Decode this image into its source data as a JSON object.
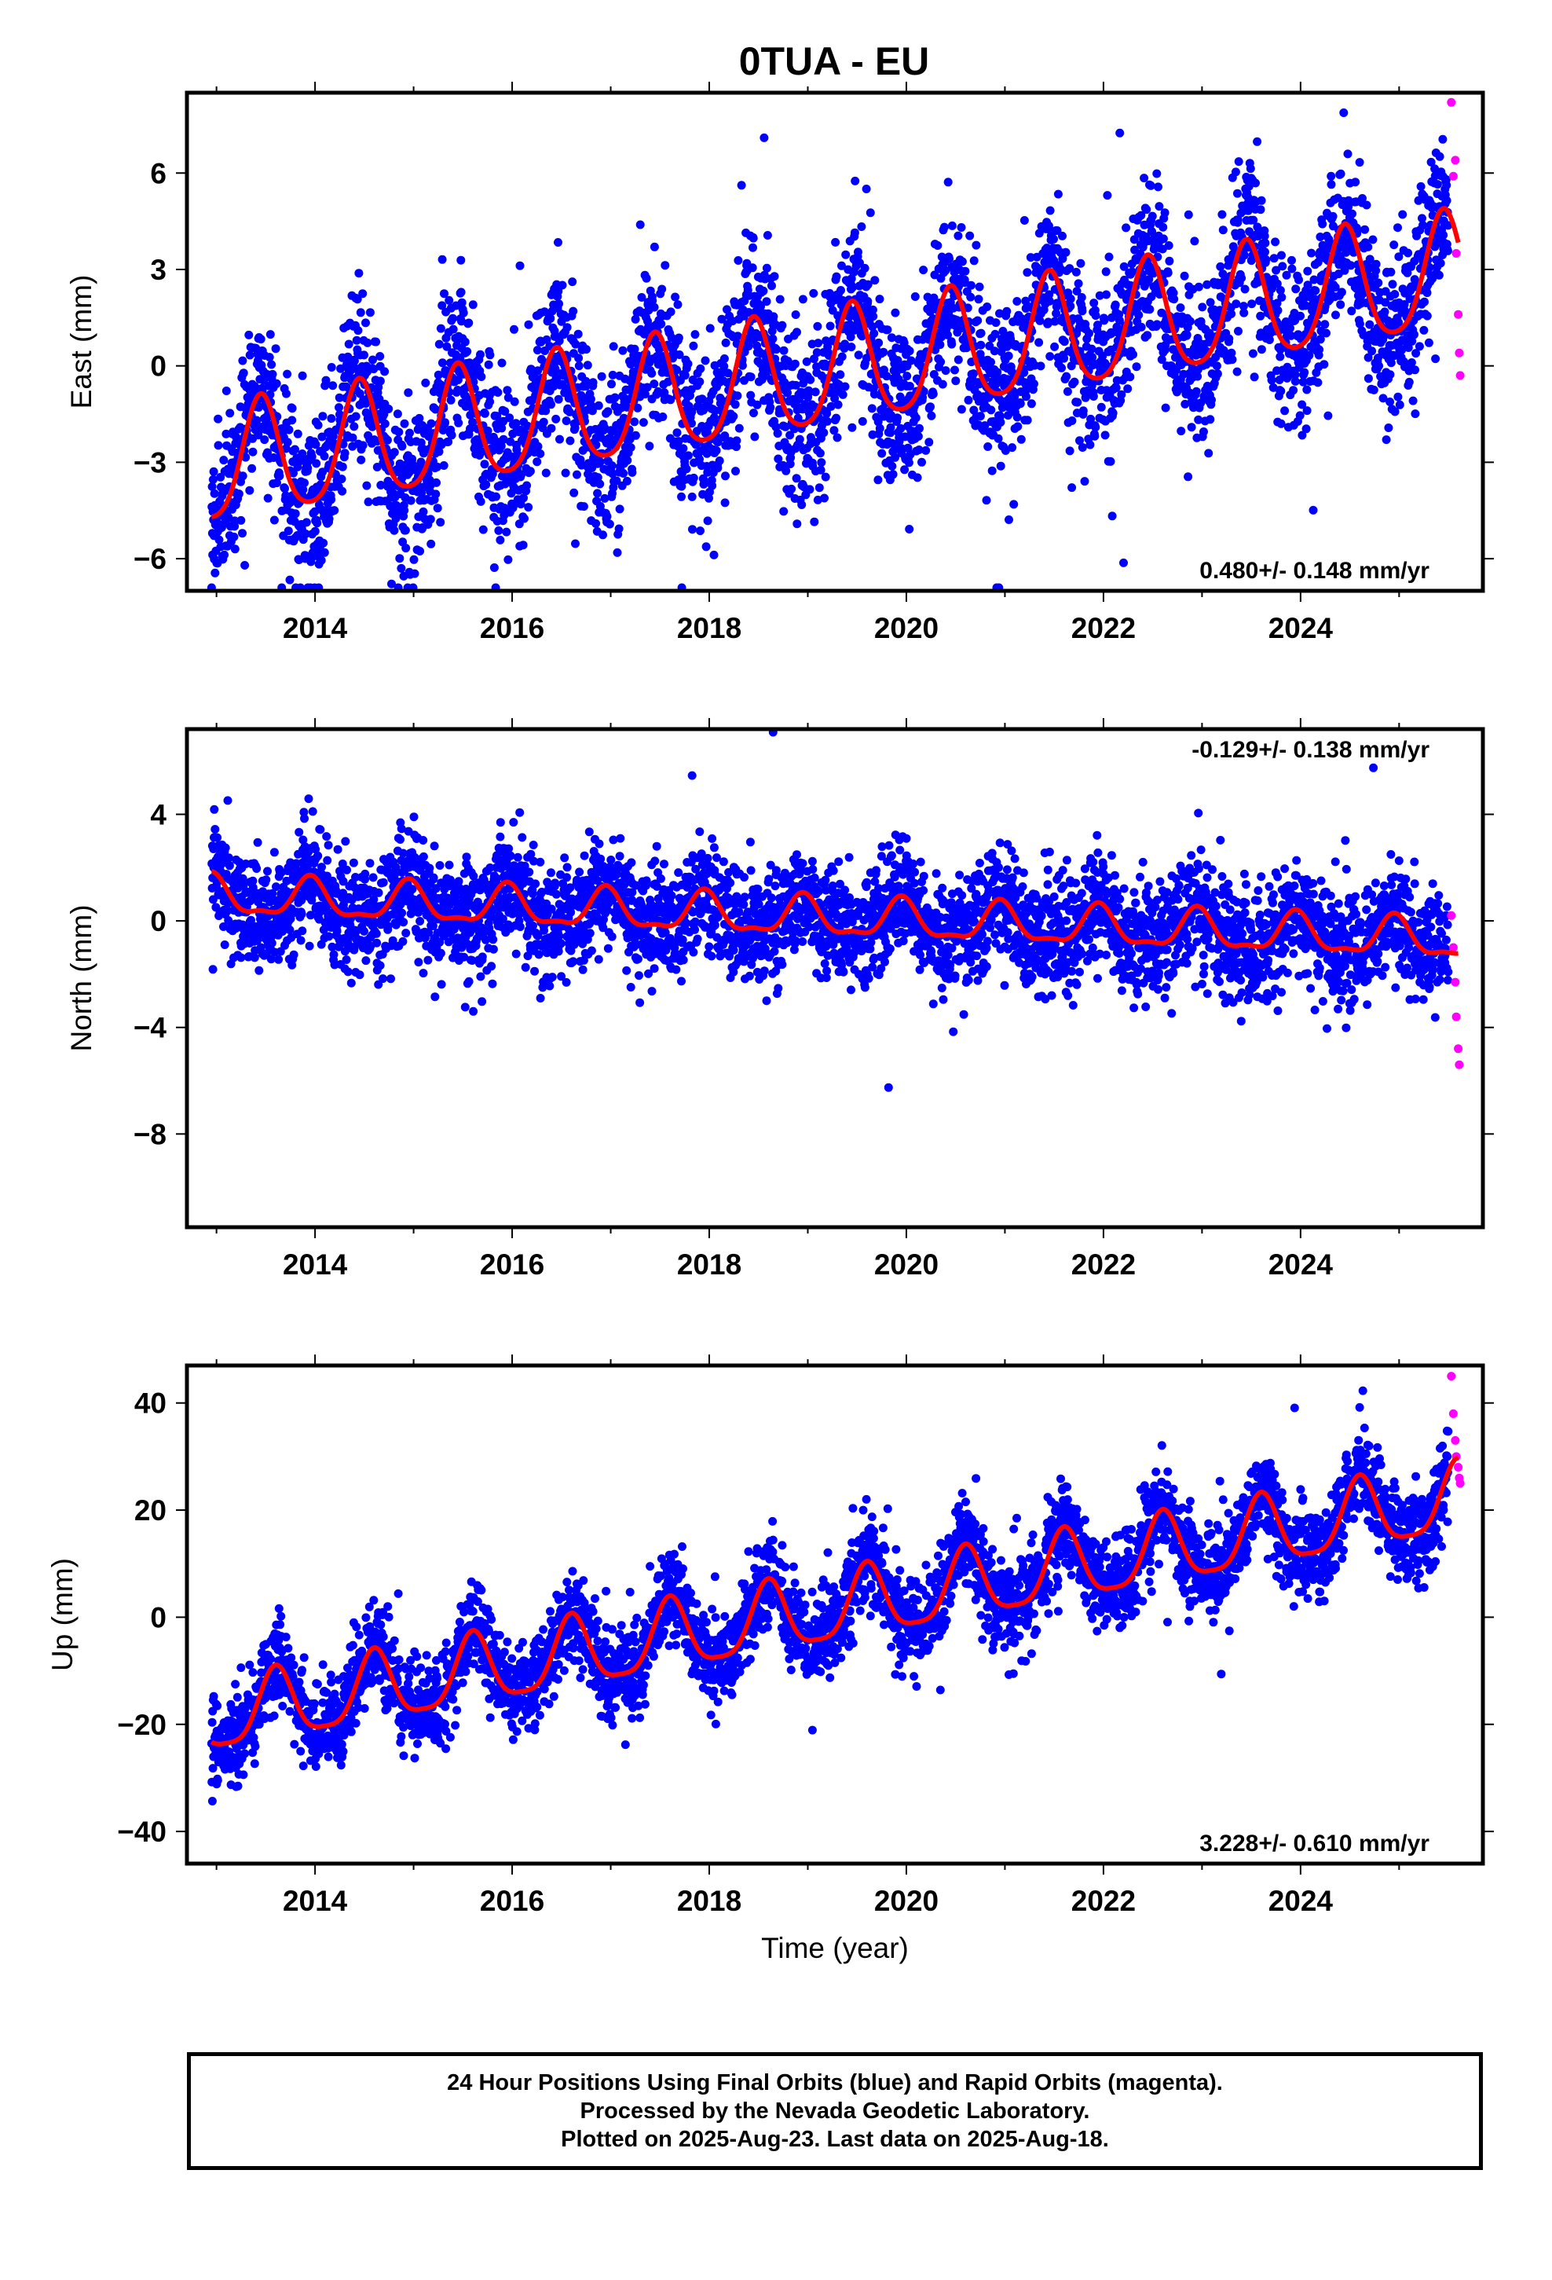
{
  "colors": {
    "final_points": "#0000ff",
    "rapid_points": "#ff00ff",
    "fit_line": "#ff0000",
    "frame": "#000000"
  },
  "footer": {
    "line1": "24 Hour Positions Using Final Orbits (blue) and Rapid Orbits (magenta).",
    "line2": "Processed by the Nevada Geodetic Laboratory.",
    "line3": "Plotted on 2025-Aug-23. Last data on 2025-Aug-18."
  },
  "chart_data": [
    {
      "type": "scatter",
      "title": "0TUA - EU",
      "xlabel": "",
      "ylabel": "East (mm)",
      "xlim": [
        2012.7,
        2025.85
      ],
      "ylim": [
        -7,
        8.5
      ],
      "xticks": [
        2014,
        2016,
        2018,
        2020,
        2022,
        2024
      ],
      "yticks": [
        -6,
        -3,
        0,
        3,
        6
      ],
      "rate_text": "0.480+/- 0.148 mm/yr",
      "rate_position": "bottom-right",
      "model": {
        "start": 2012.95,
        "end": 2025.6,
        "ref": 2012.95,
        "offset": -3.2,
        "trend": 0.48,
        "amp": 1.8,
        "phase_peak": 0.45,
        "semi_amp": 0.3
      },
      "scatter": {
        "noise": 1.3,
        "spike_chance": 0.02
      },
      "series": [
        {
          "name": "Final Orbits (blue)",
          "kind": "points",
          "x_range": [
            2012.95,
            2025.5
          ]
        },
        {
          "name": "Rapid Orbits (magenta)",
          "kind": "points",
          "x": [
            2025.53,
            2025.55,
            2025.57,
            2025.58,
            2025.6,
            2025.61,
            2025.62
          ],
          "values": [
            8.2,
            5.9,
            6.4,
            3.5,
            1.6,
            0.4,
            -0.3
          ]
        },
        {
          "name": "",
          "kind": "fit-line"
        }
      ]
    },
    {
      "type": "scatter",
      "title": "",
      "xlabel": "",
      "ylabel": "North (mm)",
      "xlim": [
        2012.7,
        2025.85
      ],
      "ylim": [
        -11.5,
        7.2
      ],
      "xticks": [
        2014,
        2016,
        2018,
        2020,
        2022,
        2024
      ],
      "yticks": [
        -8,
        -4,
        0,
        4
      ],
      "rate_text": "-0.129+/- 0.138 mm/yr",
      "rate_position": "top-right",
      "model": {
        "start": 2012.95,
        "end": 2025.6,
        "ref": 2012.95,
        "offset": 0.9,
        "trend": -0.129,
        "amp": 0.7,
        "phase_peak": 0.95,
        "semi_amp": 0.25
      },
      "scatter": {
        "noise": 1.05,
        "spike_chance": 0.01
      },
      "series": [
        {
          "name": "Final Orbits (blue)",
          "kind": "points",
          "x_range": [
            2012.95,
            2025.5
          ]
        },
        {
          "name": "Rapid Orbits (magenta)",
          "kind": "points",
          "x": [
            2025.53,
            2025.55,
            2025.57,
            2025.58,
            2025.6,
            2025.61
          ],
          "values": [
            0.2,
            -1.0,
            -2.3,
            -3.6,
            -4.8,
            -5.4
          ]
        },
        {
          "name": "",
          "kind": "fit-line"
        }
      ]
    },
    {
      "type": "scatter",
      "title": "",
      "xlabel": "Time (year)",
      "ylabel": "Up (mm)",
      "xlim": [
        2012.7,
        2025.85
      ],
      "ylim": [
        -46,
        47
      ],
      "xticks": [
        2014,
        2016,
        2018,
        2020,
        2022,
        2024
      ],
      "yticks": [
        -40,
        -20,
        0,
        20,
        40
      ],
      "rate_text": "3.228+/- 0.610 mm/yr",
      "rate_position": "bottom-right",
      "model": {
        "start": 2012.95,
        "end": 2025.6,
        "ref": 2012.95,
        "offset": -19,
        "trend": 3.228,
        "amp": 6.5,
        "phase_peak": 0.6,
        "semi_amp": 1.5
      },
      "scatter": {
        "noise": 4.2,
        "spike_chance": 0.015
      },
      "series": [
        {
          "name": "Final Orbits (blue)",
          "kind": "points",
          "x_range": [
            2012.95,
            2025.5
          ]
        },
        {
          "name": "Rapid Orbits (magenta)",
          "kind": "points",
          "x": [
            2025.53,
            2025.55,
            2025.57,
            2025.58,
            2025.6,
            2025.61,
            2025.62
          ],
          "values": [
            45,
            38,
            33,
            30,
            28,
            26,
            25
          ]
        },
        {
          "name": "",
          "kind": "fit-line"
        }
      ]
    }
  ]
}
